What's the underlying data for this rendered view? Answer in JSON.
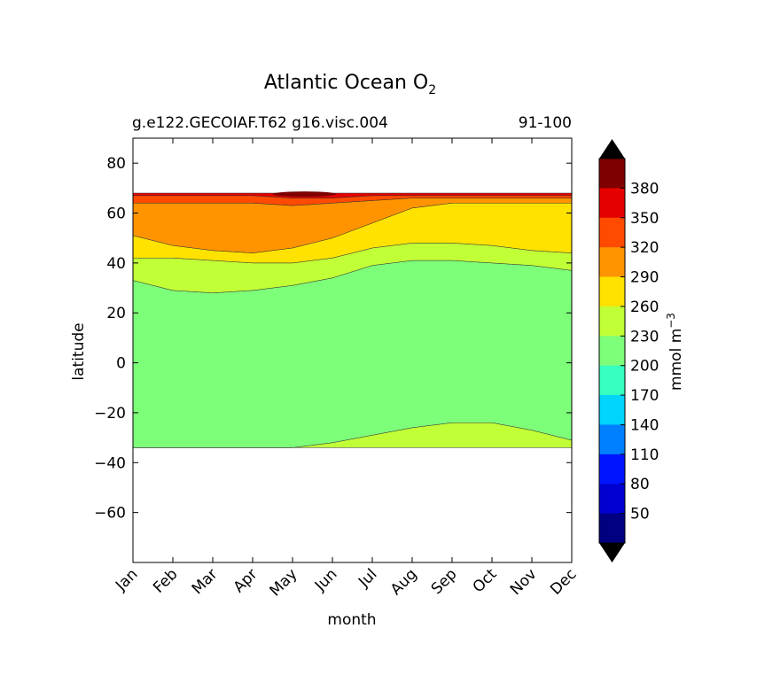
{
  "chart_data": {
    "type": "contourf",
    "title": "Atlantic Ocean O",
    "title_subscript": "2",
    "subtitle_left": "g.e122.GECOIAF.T62 g16.visc.004",
    "subtitle_right": "91-100",
    "xlabel": "month",
    "ylabel": "latitude",
    "x_categories": [
      "Jan",
      "Feb",
      "Mar",
      "Apr",
      "May",
      "Jun",
      "Jul",
      "Aug",
      "Sep",
      "Oct",
      "Nov",
      "Dec"
    ],
    "ylim": [
      -80,
      90
    ],
    "y_ticks": [
      80,
      60,
      40,
      20,
      0,
      -20,
      -40,
      -60
    ],
    "y_tick_labels": [
      "80",
      "60",
      "40",
      "20",
      "0",
      "−20",
      "−40",
      "−60"
    ],
    "data_lat_range": [
      -34,
      68
    ],
    "colorbar": {
      "label": "mmol m",
      "label_superscript": "−3",
      "tick_labels": [
        "380",
        "350",
        "320",
        "290",
        "260",
        "230",
        "200",
        "170",
        "140",
        "110",
        "80",
        "50"
      ],
      "levels_top_to_bottom": [
        380,
        350,
        320,
        290,
        260,
        230,
        200,
        170,
        140,
        110,
        80,
        50,
        20
      ],
      "extend": "both",
      "over_color": "#000000",
      "under_color": "#000000",
      "colors_top_to_bottom": [
        "#7f0000",
        "#e50000",
        "#ff4a00",
        "#ff9400",
        "#ffe200",
        "#c1ff36",
        "#7dff7a",
        "#36ffc1",
        "#00d4ff",
        "#0080ff",
        "#0014ff",
        "#0000d0",
        "#000080"
      ]
    },
    "boundaries_by_month": {
      "months": [
        1,
        2,
        3,
        4,
        5,
        6,
        7,
        8,
        9,
        10,
        11,
        12
      ],
      "lat_200_230_south": [
        -34,
        -34,
        -34,
        -34,
        -34,
        -32,
        -29,
        -26,
        -24,
        -24,
        -27,
        -31
      ],
      "lat_230_260_north": [
        33,
        29,
        28,
        29,
        31,
        34,
        39,
        41,
        41,
        40,
        39,
        37
      ],
      "lat_260_290": [
        42,
        42,
        41,
        40,
        40,
        42,
        46,
        48,
        48,
        47,
        45,
        44
      ],
      "lat_290_320": [
        51,
        47,
        45,
        44,
        46,
        50,
        56,
        62,
        64,
        64,
        64,
        64
      ],
      "lat_320_350": [
        64,
        64,
        64,
        64,
        63,
        64,
        65,
        66,
        66,
        66,
        66,
        66
      ],
      "lat_350_380": [
        67,
        67,
        67,
        67,
        66,
        66,
        67,
        67,
        67,
        67,
        67,
        67
      ],
      "lat_top": [
        68,
        68,
        68,
        68,
        68,
        68,
        68,
        68,
        68,
        68,
        68,
        68
      ]
    }
  }
}
